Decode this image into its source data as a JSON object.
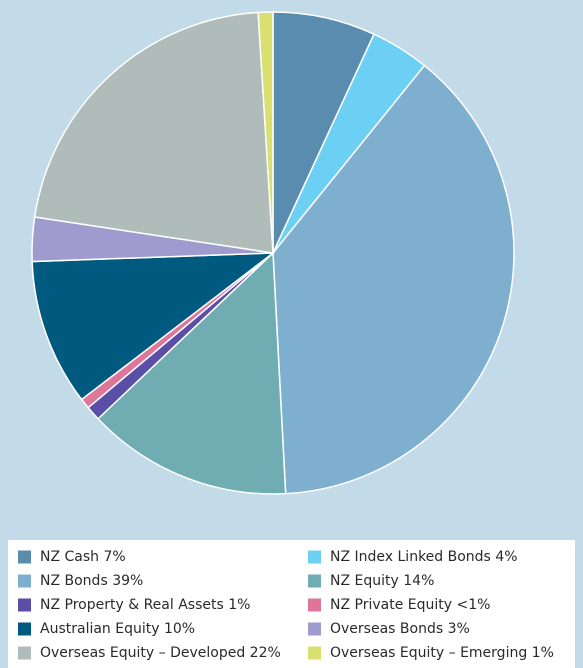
{
  "chart_data": {
    "type": "pie",
    "categories": [
      "NZ Cash",
      "NZ Index Linked Bonds",
      "NZ Bonds",
      "NZ Equity",
      "NZ Property & Real Assets",
      "NZ Private Equity",
      "Australian Equity",
      "Overseas Bonds",
      "Overseas Equity – Developed",
      "Overseas Equity – Emerging"
    ],
    "values": [
      7,
      4,
      39,
      14,
      1,
      0.7,
      10,
      3,
      22,
      1
    ],
    "value_labels": [
      "7%",
      "4%",
      "39%",
      "14%",
      "1%",
      "<1%",
      "10%",
      "3%",
      "22%",
      "1%"
    ],
    "colors": [
      "#5a8cb0",
      "#6ccff4",
      "#7fafce",
      "#70adb3",
      "#5a4ea6",
      "#df7599",
      "#005a80",
      "#9f9bce",
      "#b0bcba",
      "#d9e070"
    ]
  }
}
